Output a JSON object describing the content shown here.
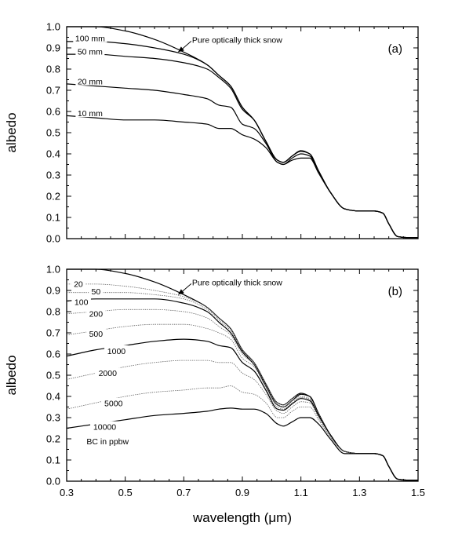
{
  "chart_data": [
    {
      "type": "line",
      "panel_label": "(a)",
      "ylabel": "albedo",
      "xlabel": "",
      "xlim": [
        0.3,
        1.5
      ],
      "ylim": [
        0.0,
        1.0
      ],
      "xticks": [
        "0.3",
        "0.5",
        "0.7",
        "0.9",
        "1.1",
        "1.3",
        "1.5"
      ],
      "yticks": [
        "0.0",
        "0.1",
        "0.2",
        "0.3",
        "0.4",
        "0.5",
        "0.6",
        "0.7",
        "0.8",
        "0.9",
        "1.0"
      ],
      "show_x_tick_labels": false,
      "annotation": {
        "text": "Pure optically thick snow",
        "arrow_to": [
          0.68,
          0.88
        ]
      },
      "x": [
        0.3,
        0.4,
        0.5,
        0.6,
        0.7,
        0.78,
        0.82,
        0.86,
        0.9,
        0.94,
        0.98,
        1.02,
        1.04,
        1.07,
        1.1,
        1.13,
        1.16,
        1.2,
        1.25,
        1.3,
        1.35,
        1.38,
        1.4,
        1.43,
        1.46,
        1.5
      ],
      "series": [
        {
          "name": "Pure optically thick snow",
          "dashed": false,
          "values": [
            1.0,
            1.0,
            0.98,
            0.94,
            0.88,
            0.82,
            0.77,
            0.72,
            0.62,
            0.56,
            0.46,
            0.37,
            0.36,
            0.39,
            0.415,
            0.4,
            0.32,
            0.22,
            0.14,
            0.13,
            0.13,
            0.12,
            0.07,
            0.01,
            0.005,
            0.005
          ]
        },
        {
          "name": "100 mm",
          "dashed": false,
          "label_pos": [
            0.38,
            0.945
          ],
          "values": [
            0.93,
            0.93,
            0.92,
            0.9,
            0.87,
            0.82,
            0.77,
            0.72,
            0.62,
            0.56,
            0.46,
            0.37,
            0.36,
            0.39,
            0.415,
            0.4,
            0.32,
            0.22,
            0.14,
            0.13,
            0.13,
            0.12,
            0.07,
            0.01,
            0.005,
            0.005
          ]
        },
        {
          "name": "50 mm",
          "dashed": false,
          "label_pos": [
            0.38,
            0.882
          ],
          "values": [
            0.87,
            0.87,
            0.86,
            0.85,
            0.83,
            0.8,
            0.76,
            0.71,
            0.61,
            0.56,
            0.46,
            0.37,
            0.36,
            0.39,
            0.412,
            0.4,
            0.32,
            0.22,
            0.14,
            0.13,
            0.13,
            0.12,
            0.07,
            0.01,
            0.005,
            0.005
          ]
        },
        {
          "name": "20 mm",
          "dashed": false,
          "label_pos": [
            0.38,
            0.742
          ],
          "values": [
            0.73,
            0.72,
            0.71,
            0.7,
            0.68,
            0.66,
            0.63,
            0.62,
            0.54,
            0.52,
            0.45,
            0.36,
            0.35,
            0.38,
            0.4,
            0.39,
            0.32,
            0.22,
            0.14,
            0.13,
            0.13,
            0.12,
            0.07,
            0.01,
            0.005,
            0.005
          ]
        },
        {
          "name": "10 mm",
          "dashed": false,
          "label_pos": [
            0.38,
            0.592
          ],
          "values": [
            0.58,
            0.57,
            0.56,
            0.56,
            0.55,
            0.54,
            0.52,
            0.52,
            0.49,
            0.47,
            0.43,
            0.36,
            0.35,
            0.37,
            0.38,
            0.38,
            0.31,
            0.22,
            0.14,
            0.13,
            0.13,
            0.12,
            0.07,
            0.01,
            0.005,
            0.005
          ]
        }
      ]
    },
    {
      "type": "line",
      "panel_label": "(b)",
      "ylabel": "albedo",
      "xlabel": "wavelength (μm)",
      "xlim": [
        0.3,
        1.5
      ],
      "ylim": [
        0.0,
        1.0
      ],
      "xticks": [
        "0.3",
        "0.5",
        "0.7",
        "0.9",
        "1.1",
        "1.3",
        "1.5"
      ],
      "yticks": [
        "0.0",
        "0.1",
        "0.2",
        "0.3",
        "0.4",
        "0.5",
        "0.6",
        "0.7",
        "0.8",
        "0.9",
        "1.0"
      ],
      "show_x_tick_labels": true,
      "annotation": {
        "text": "Pure optically thick snow",
        "arrow_to": [
          0.68,
          0.88
        ]
      },
      "note": "BC in ppbw",
      "x": [
        0.3,
        0.4,
        0.5,
        0.6,
        0.7,
        0.78,
        0.82,
        0.86,
        0.9,
        0.94,
        0.98,
        1.02,
        1.04,
        1.07,
        1.1,
        1.13,
        1.16,
        1.2,
        1.25,
        1.3,
        1.35,
        1.38,
        1.4,
        1.43,
        1.46,
        1.5
      ],
      "series": [
        {
          "name": "Pure optically thick snow",
          "dashed": false,
          "values": [
            1.0,
            1.0,
            0.98,
            0.94,
            0.88,
            0.82,
            0.77,
            0.72,
            0.62,
            0.56,
            0.46,
            0.37,
            0.36,
            0.39,
            0.415,
            0.4,
            0.32,
            0.22,
            0.14,
            0.13,
            0.13,
            0.12,
            0.07,
            0.01,
            0.005,
            0.005
          ]
        },
        {
          "name": "20",
          "dashed": true,
          "label_pos": [
            0.34,
            0.93
          ],
          "values": [
            0.93,
            0.93,
            0.92,
            0.9,
            0.87,
            0.82,
            0.77,
            0.72,
            0.62,
            0.56,
            0.46,
            0.37,
            0.36,
            0.39,
            0.412,
            0.4,
            0.32,
            0.22,
            0.14,
            0.13,
            0.13,
            0.12,
            0.07,
            0.01,
            0.005,
            0.005
          ]
        },
        {
          "name": "50",
          "dashed": true,
          "label_pos": [
            0.4,
            0.895
          ],
          "values": [
            0.89,
            0.89,
            0.89,
            0.88,
            0.86,
            0.81,
            0.76,
            0.71,
            0.61,
            0.56,
            0.46,
            0.37,
            0.36,
            0.39,
            0.41,
            0.4,
            0.32,
            0.22,
            0.14,
            0.13,
            0.13,
            0.12,
            0.07,
            0.01,
            0.005,
            0.005
          ]
        },
        {
          "name": "100",
          "dashed": false,
          "label_pos": [
            0.35,
            0.845
          ],
          "values": [
            0.85,
            0.86,
            0.86,
            0.86,
            0.84,
            0.8,
            0.75,
            0.7,
            0.61,
            0.55,
            0.45,
            0.36,
            0.35,
            0.38,
            0.41,
            0.4,
            0.32,
            0.22,
            0.14,
            0.13,
            0.13,
            0.12,
            0.07,
            0.01,
            0.005,
            0.005
          ]
        },
        {
          "name": "200",
          "dashed": true,
          "label_pos": [
            0.4,
            0.79
          ],
          "values": [
            0.79,
            0.8,
            0.81,
            0.81,
            0.8,
            0.77,
            0.73,
            0.69,
            0.6,
            0.55,
            0.45,
            0.36,
            0.35,
            0.38,
            0.4,
            0.39,
            0.32,
            0.22,
            0.14,
            0.13,
            0.13,
            0.12,
            0.07,
            0.01,
            0.005,
            0.005
          ]
        },
        {
          "name": "500",
          "dashed": true,
          "label_pos": [
            0.4,
            0.695
          ],
          "values": [
            0.69,
            0.71,
            0.73,
            0.74,
            0.74,
            0.72,
            0.7,
            0.67,
            0.58,
            0.54,
            0.44,
            0.35,
            0.34,
            0.37,
            0.395,
            0.385,
            0.31,
            0.22,
            0.14,
            0.13,
            0.13,
            0.12,
            0.07,
            0.01,
            0.005,
            0.005
          ]
        },
        {
          "name": "1000",
          "dashed": false,
          "label_pos": [
            0.47,
            0.615
          ],
          "values": [
            0.59,
            0.62,
            0.64,
            0.66,
            0.67,
            0.66,
            0.64,
            0.63,
            0.56,
            0.52,
            0.43,
            0.34,
            0.335,
            0.365,
            0.39,
            0.38,
            0.31,
            0.22,
            0.14,
            0.13,
            0.13,
            0.12,
            0.07,
            0.01,
            0.005,
            0.005
          ]
        },
        {
          "name": "2000",
          "dashed": true,
          "label_pos": [
            0.44,
            0.51
          ],
          "values": [
            0.48,
            0.51,
            0.54,
            0.56,
            0.57,
            0.57,
            0.56,
            0.56,
            0.51,
            0.48,
            0.41,
            0.33,
            0.32,
            0.35,
            0.375,
            0.37,
            0.3,
            0.21,
            0.14,
            0.13,
            0.13,
            0.12,
            0.07,
            0.01,
            0.005,
            0.005
          ]
        },
        {
          "name": "5000",
          "dashed": true,
          "label_pos": [
            0.46,
            0.367
          ],
          "values": [
            0.34,
            0.37,
            0.4,
            0.42,
            0.43,
            0.44,
            0.44,
            0.45,
            0.42,
            0.41,
            0.37,
            0.3,
            0.3,
            0.33,
            0.35,
            0.35,
            0.29,
            0.21,
            0.14,
            0.13,
            0.13,
            0.12,
            0.07,
            0.01,
            0.005,
            0.005
          ]
        },
        {
          "name": "10000",
          "dashed": false,
          "label_pos": [
            0.43,
            0.257
          ],
          "values": [
            0.25,
            0.27,
            0.29,
            0.31,
            0.32,
            0.33,
            0.34,
            0.345,
            0.34,
            0.34,
            0.32,
            0.27,
            0.26,
            0.28,
            0.3,
            0.3,
            0.27,
            0.2,
            0.13,
            0.13,
            0.13,
            0.12,
            0.07,
            0.01,
            0.005,
            0.005
          ]
        }
      ]
    }
  ]
}
